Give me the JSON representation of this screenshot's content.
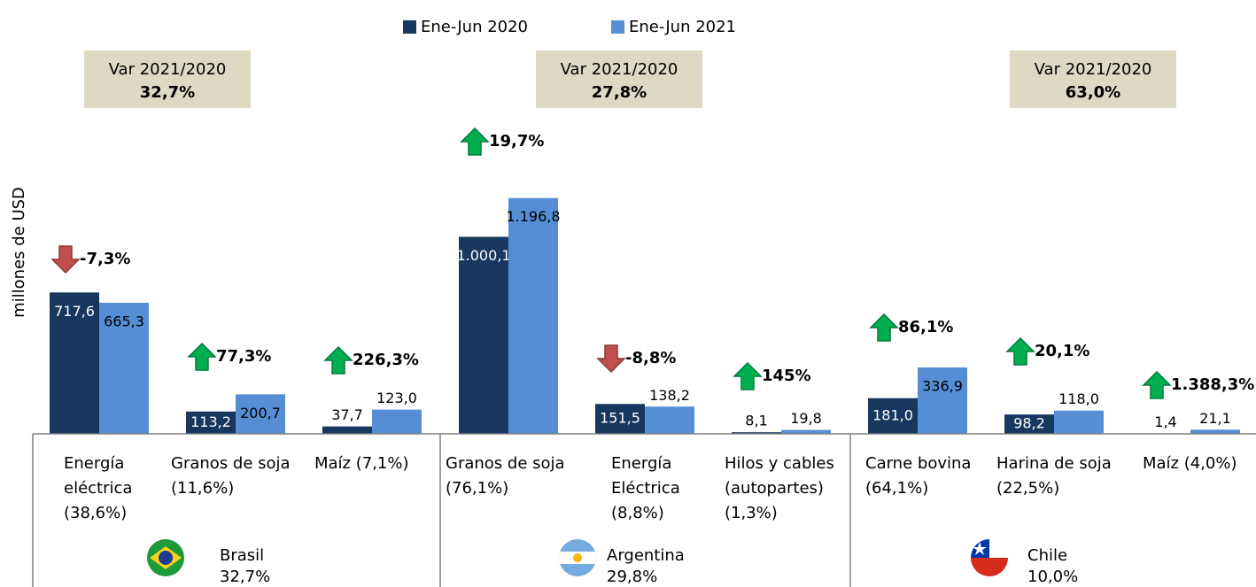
{
  "chart_data": {
    "type": "bar",
    "legend": "top",
    "y_label": "millones de USD",
    "ylim": [
      0,
      2000
    ],
    "categories": [
      [
        "Energía",
        "eléctrica",
        "(38,6%)"
      ],
      [
        "Granos de soja",
        "(11,6%)"
      ],
      [
        "Maíz (7,1%)"
      ],
      [
        "Granos de soja",
        "(76,1%)"
      ],
      [
        "Energía",
        "Eléctrica",
        "(8,8%)"
      ],
      [
        "Hilos y cables",
        "(autopartes)",
        "(1,3%)"
      ],
      [
        "Carne bovina",
        "(64,1%)"
      ],
      [
        "Harina de soja",
        "(22,5%)"
      ],
      [
        "Maíz (4,0%)"
      ]
    ],
    "series": [
      {
        "name": "Ene-Jun 2020",
        "color": "#17375e",
        "values": [
          717.6,
          113.2,
          37.7,
          1000.1,
          151.5,
          8.1,
          181.0,
          98.2,
          1.4
        ],
        "value_labels": [
          "717,6",
          "113,2",
          "37,7",
          "1.000,1",
          "151,5",
          "8,1",
          "181,0",
          "98,2",
          "1,4"
        ]
      },
      {
        "name": "Ene-Jun 2021",
        "color": "#558ed5",
        "values": [
          665.3,
          200.7,
          123.0,
          1196.8,
          138.2,
          19.8,
          336.9,
          118.0,
          21.1
        ],
        "value_labels": [
          "665,3",
          "200,7",
          "123,0",
          "1.196,8",
          "138,2",
          "19,8",
          "336,9",
          "118,0",
          "21,1"
        ]
      }
    ],
    "changes": [
      -7.3,
      77.3,
      226.3,
      19.7,
      -8.8,
      145,
      86.1,
      20.1,
      1388.3
    ],
    "change_labels": [
      "-7,3%",
      "77,3%",
      "226,3%",
      "19,7%",
      "-8,8%",
      "145%",
      "86,1%",
      "20,1%",
      "1.388,3%"
    ],
    "groups": [
      {
        "name": "Brasil",
        "share": "32,7%",
        "var_title": "Var 2021/2020",
        "var": "32,7%"
      },
      {
        "name": "Argentina",
        "share": "29,8%",
        "var_title": "Var 2021/2020",
        "var": "27,8%"
      },
      {
        "name": "Chile",
        "share": "10,0%",
        "var_title": "Var 2021/2020",
        "var": "63,0%"
      }
    ]
  }
}
